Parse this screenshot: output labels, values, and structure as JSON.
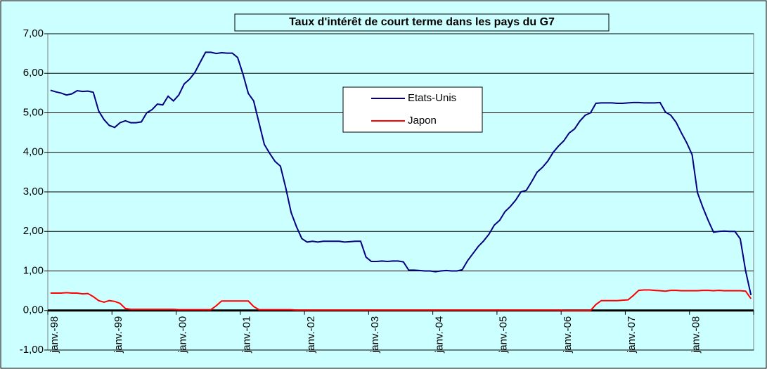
{
  "chart_data": {
    "type": "line",
    "title": "Taux d'intérêt de court terme dans les pays du G7",
    "categories": [
      "janv.-98",
      null,
      null,
      null,
      null,
      null,
      null,
      null,
      null,
      null,
      null,
      null,
      "janv.-99",
      null,
      null,
      null,
      null,
      null,
      null,
      null,
      null,
      null,
      null,
      null,
      "janv.-00",
      null,
      null,
      null,
      null,
      null,
      null,
      null,
      null,
      null,
      null,
      null,
      "janv.-01",
      null,
      null,
      null,
      null,
      null,
      null,
      null,
      null,
      null,
      null,
      null,
      "janv.-02",
      null,
      null,
      null,
      null,
      null,
      null,
      null,
      null,
      null,
      null,
      null,
      "janv.-03",
      null,
      null,
      null,
      null,
      null,
      null,
      null,
      null,
      null,
      null,
      null,
      "janv.-04",
      null,
      null,
      null,
      null,
      null,
      null,
      null,
      null,
      null,
      null,
      null,
      "janv.-05",
      null,
      null,
      null,
      null,
      null,
      null,
      null,
      null,
      null,
      null,
      null,
      "janv.-06",
      null,
      null,
      null,
      null,
      null,
      null,
      null,
      null,
      null,
      null,
      null,
      "janv.-07",
      null,
      null,
      null,
      null,
      null,
      null,
      null,
      null,
      null,
      null,
      null,
      "janv.-08",
      null,
      null,
      null,
      null,
      null,
      null,
      null,
      null,
      null,
      null,
      null
    ],
    "series": [
      {
        "name": "Etats-Unis",
        "color": "#000080",
        "values": [
          5.57,
          5.53,
          5.5,
          5.45,
          5.48,
          5.56,
          5.54,
          5.55,
          5.52,
          5.05,
          4.83,
          4.68,
          4.63,
          4.75,
          4.8,
          4.75,
          4.75,
          4.77,
          5.0,
          5.08,
          5.22,
          5.2,
          5.42,
          5.3,
          5.45,
          5.73,
          5.85,
          6.02,
          6.28,
          6.53,
          6.53,
          6.5,
          6.52,
          6.51,
          6.51,
          6.4,
          5.98,
          5.49,
          5.3,
          4.75,
          4.2,
          3.97,
          3.77,
          3.65,
          3.1,
          2.48,
          2.12,
          1.82,
          1.73,
          1.75,
          1.73,
          1.75,
          1.75,
          1.75,
          1.75,
          1.73,
          1.74,
          1.75,
          1.75,
          1.35,
          1.24,
          1.24,
          1.25,
          1.24,
          1.25,
          1.25,
          1.23,
          1.02,
          1.02,
          1.01,
          1.0,
          1.0,
          0.98,
          1.0,
          1.01,
          1.0,
          1.0,
          1.03,
          1.26,
          1.44,
          1.62,
          1.76,
          1.93,
          2.16,
          2.28,
          2.5,
          2.63,
          2.79,
          3.0,
          3.04,
          3.26,
          3.5,
          3.62,
          3.78,
          4.0,
          4.16,
          4.29,
          4.49,
          4.59,
          4.79,
          4.94,
          5.0,
          5.24,
          5.25,
          5.25,
          5.25,
          5.24,
          5.24,
          5.25,
          5.26,
          5.26,
          5.25,
          5.25,
          5.25,
          5.26,
          5.02,
          4.94,
          4.76,
          4.49,
          4.24,
          3.94,
          2.98,
          2.61,
          2.28,
          1.98,
          2.0,
          2.01,
          2.0,
          2.0,
          1.81,
          1.0,
          0.39
        ]
      },
      {
        "name": "Japon",
        "color": "#ff0000",
        "values": [
          0.44,
          0.44,
          0.44,
          0.45,
          0.44,
          0.44,
          0.42,
          0.43,
          0.35,
          0.25,
          0.21,
          0.25,
          0.23,
          0.18,
          0.05,
          0.03,
          0.03,
          0.03,
          0.03,
          0.03,
          0.03,
          0.03,
          0.03,
          0.03,
          0.02,
          0.02,
          0.02,
          0.02,
          0.02,
          0.02,
          0.02,
          0.12,
          0.24,
          0.24,
          0.24,
          0.24,
          0.24,
          0.24,
          0.1,
          0.02,
          0.02,
          0.02,
          0.02,
          0.02,
          0.02,
          0.02,
          0.01,
          0.01,
          0.01,
          0.01,
          0.01,
          0.01,
          0.01,
          0.01,
          0.01,
          0.01,
          0.01,
          0.01,
          0.01,
          0.01,
          0.01,
          0.01,
          0.01,
          0.01,
          0.01,
          0.01,
          0.01,
          0.01,
          0.01,
          0.01,
          0.01,
          0.01,
          0.01,
          0.01,
          0.01,
          0.01,
          0.01,
          0.01,
          0.01,
          0.01,
          0.01,
          0.01,
          0.01,
          0.01,
          0.01,
          0.01,
          0.01,
          0.01,
          0.01,
          0.01,
          0.01,
          0.01,
          0.01,
          0.01,
          0.01,
          0.01,
          0.0,
          0.0,
          0.0,
          0.0,
          0.0,
          0.0,
          0.15,
          0.25,
          0.25,
          0.25,
          0.25,
          0.26,
          0.27,
          0.38,
          0.51,
          0.52,
          0.52,
          0.51,
          0.5,
          0.49,
          0.51,
          0.51,
          0.5,
          0.5,
          0.5,
          0.5,
          0.51,
          0.51,
          0.5,
          0.51,
          0.5,
          0.5,
          0.5,
          0.5,
          0.49,
          0.3
        ]
      }
    ],
    "ylim": [
      -1,
      7
    ],
    "yticks": [
      {
        "value": -1,
        "label": "-1,00"
      },
      {
        "value": 0,
        "label": "0,00"
      },
      {
        "value": 1,
        "label": "1,00"
      },
      {
        "value": 2,
        "label": "2,00"
      },
      {
        "value": 3,
        "label": "3,00"
      },
      {
        "value": 4,
        "label": "4,00"
      },
      {
        "value": 5,
        "label": "5,00"
      },
      {
        "value": 6,
        "label": "6,00"
      },
      {
        "value": 7,
        "label": "7,00"
      }
    ],
    "grid": true,
    "legend": "center"
  }
}
